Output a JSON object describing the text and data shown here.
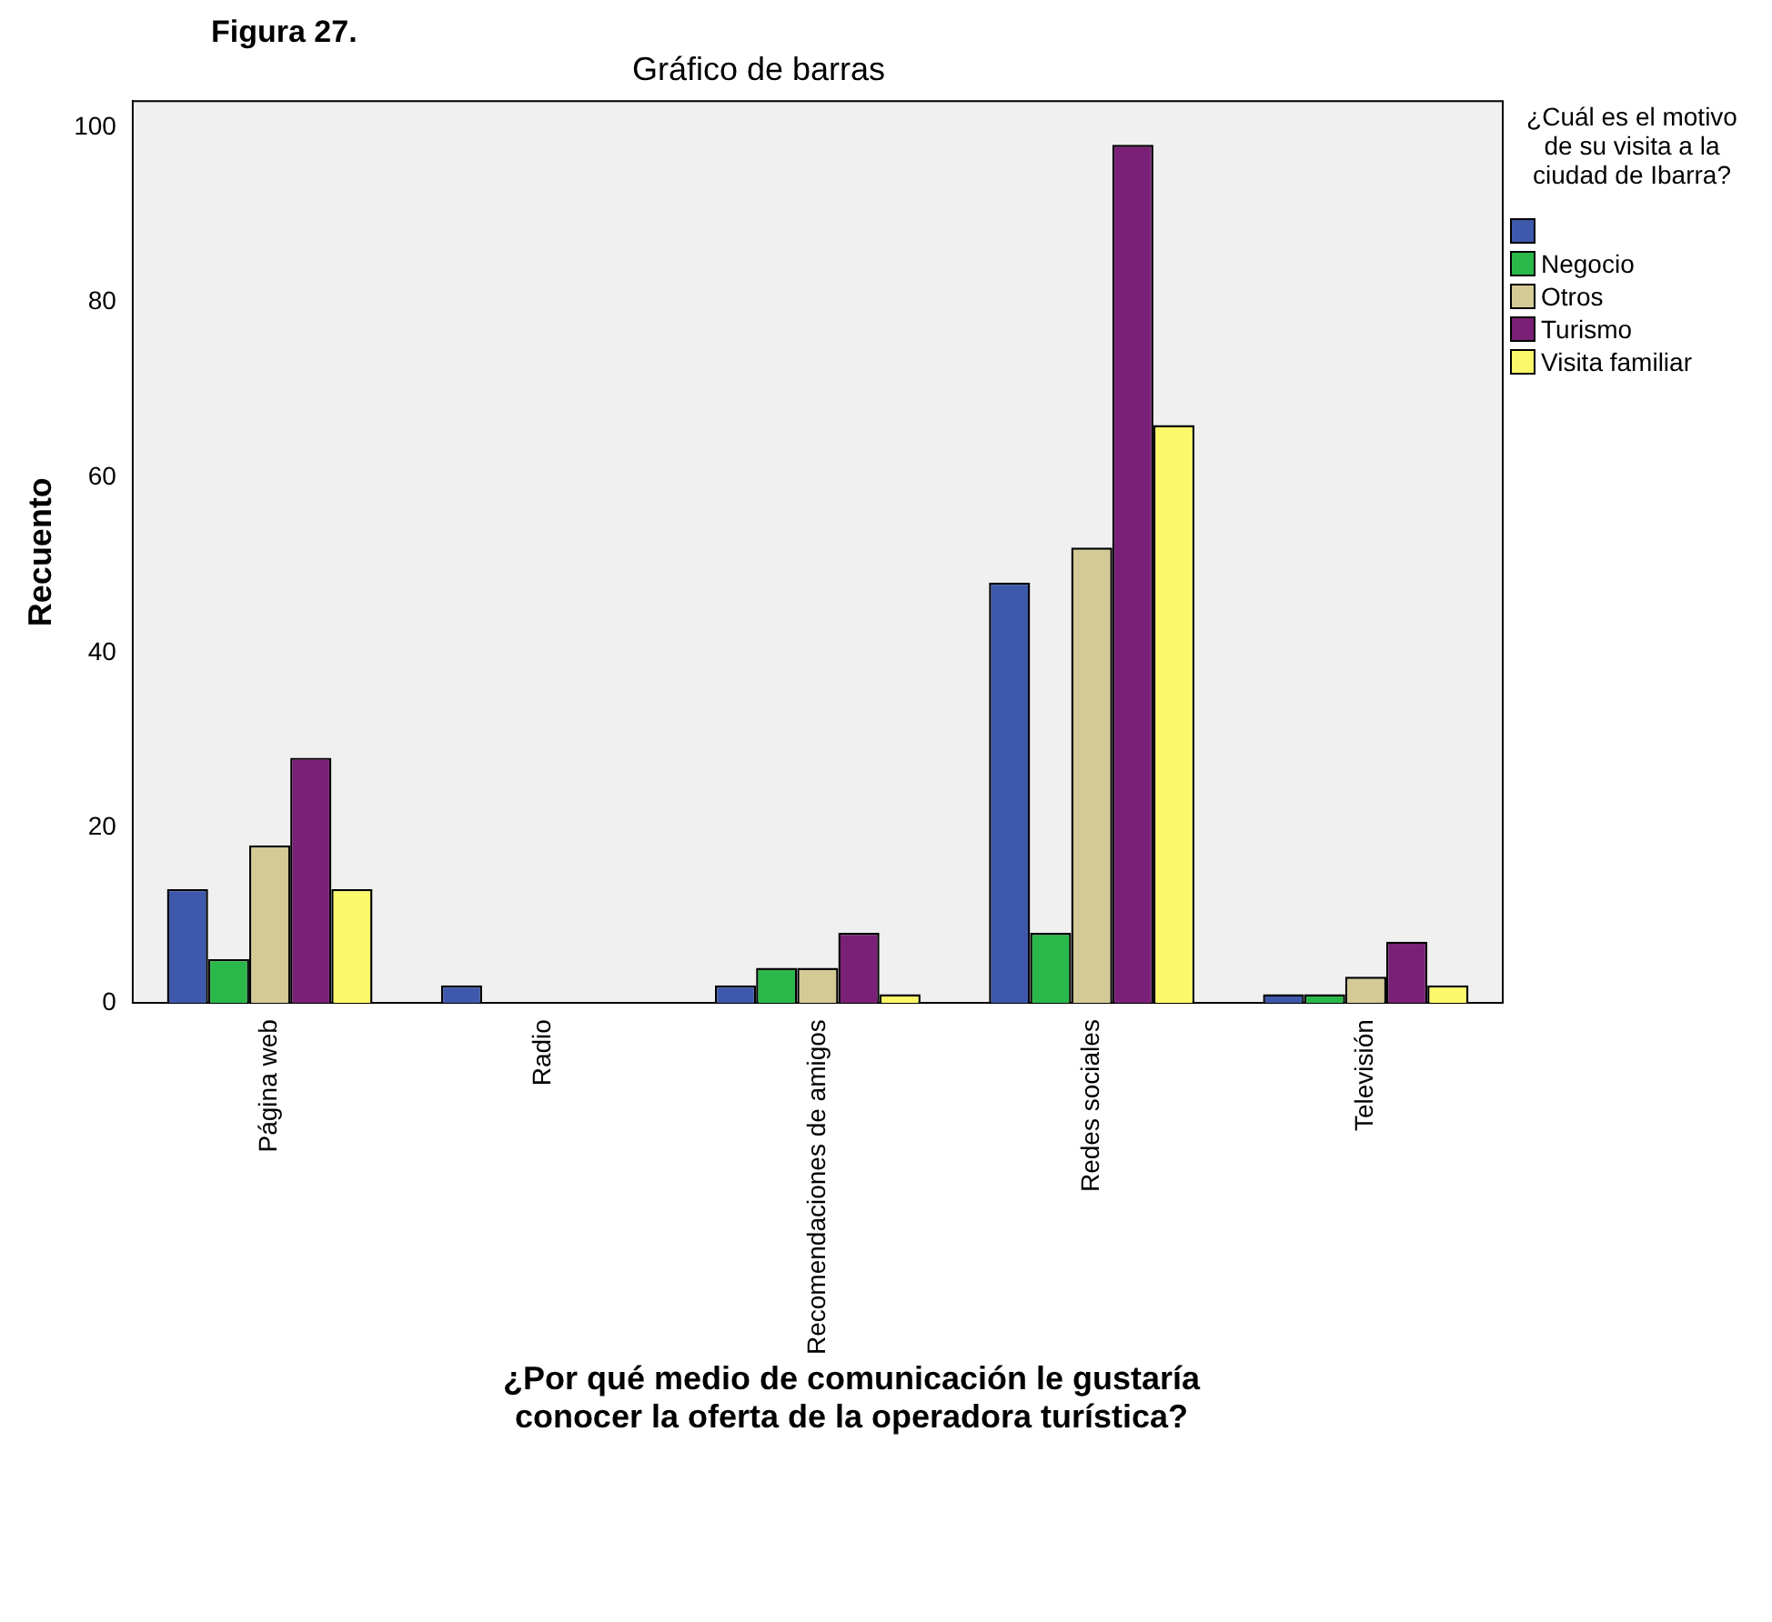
{
  "chart_data": {
    "type": "bar",
    "title": "Gráfico de barras",
    "annotations": [
      "Figura 27."
    ],
    "xlabel": "¿Por qué medio de comunicación le gustaría conocer la oferta de la operadora turística?",
    "ylabel": "Recuento",
    "legend_title": "¿Cuál es el motivo de su visita a la ciudad de Ibarra?",
    "legend": "right",
    "grid": false,
    "categories": [
      "Página web",
      "Radio",
      "Recomendaciones de amigos",
      "Redes sociales",
      "Televisión"
    ],
    "ylim": [
      0,
      103
    ],
    "yticks": [
      0,
      20,
      40,
      60,
      80,
      100
    ],
    "series": [
      {
        "color": "#3e58ac",
        "values": [
          13,
          2,
          2,
          48,
          1
        ]
      },
      {
        "name": "Negocio",
        "color": "#2bb84a",
        "values": [
          5,
          0,
          4,
          8,
          1
        ]
      },
      {
        "name": "Otros",
        "color": "#d3ca96",
        "values": [
          18,
          0,
          4,
          52,
          3
        ]
      },
      {
        "name": "Turismo",
        "color": "#7a2077",
        "values": [
          28,
          0,
          8,
          98,
          7
        ]
      },
      {
        "name": "Visita familiar",
        "color": "#fdf86a",
        "values": [
          13,
          0,
          1,
          66,
          2
        ]
      }
    ]
  }
}
